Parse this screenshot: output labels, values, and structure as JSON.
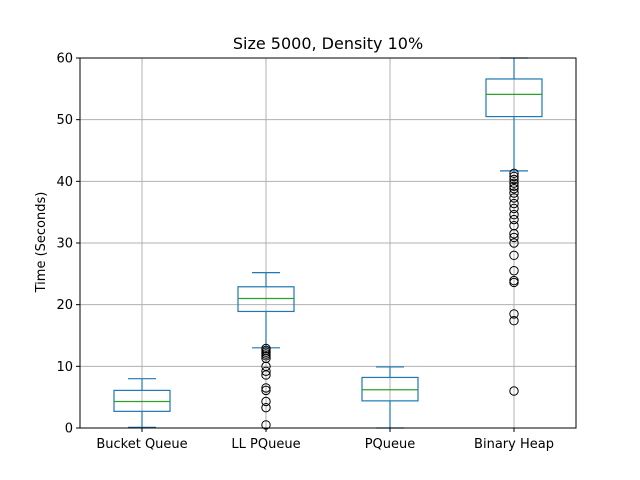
{
  "chart_data": {
    "type": "boxplot",
    "title": "Size 5000, Density 10%",
    "xlabel": "",
    "ylabel": "Time (Seconds)",
    "ylim": [
      0,
      60
    ],
    "yticks": [
      0,
      10,
      20,
      30,
      40,
      50,
      60
    ],
    "grid": true,
    "colors": {
      "box": "#1f77b4",
      "median": "#2ca02c",
      "grid": "#b0b0b0",
      "outlier": "#000000"
    },
    "categories": [
      "Bucket Queue",
      "LL PQueue",
      "PQueue",
      "Binary Heap"
    ],
    "boxes": [
      {
        "label": "Bucket Queue",
        "whisker_low": 0.1,
        "q1": 2.7,
        "median": 4.3,
        "q3": 6.1,
        "whisker_high": 8.0,
        "outliers": []
      },
      {
        "label": "LL PQueue",
        "whisker_low": 13.0,
        "q1": 18.9,
        "median": 21.0,
        "q3": 22.9,
        "whisker_high": 25.2,
        "outliers": [
          12.9,
          12.6,
          12.3,
          12.0,
          11.7,
          11.3,
          10.0,
          9.2,
          8.6,
          6.5,
          6.1,
          4.3,
          3.3,
          0.5
        ]
      },
      {
        "label": "PQueue",
        "whisker_low": 0.0,
        "q1": 4.4,
        "median": 6.2,
        "q3": 8.2,
        "whisker_high": 9.9,
        "outliers": []
      },
      {
        "label": "Binary Heap",
        "whisker_low": 41.7,
        "q1": 50.5,
        "median": 54.1,
        "q3": 56.6,
        "whisker_high": 60.0,
        "outliers": [
          41.3,
          40.8,
          40.3,
          39.7,
          39.2,
          38.8,
          38.1,
          37.3,
          36.4,
          35.6,
          34.6,
          33.8,
          32.8,
          31.5,
          30.9,
          30.0,
          28.0,
          25.5,
          23.9,
          23.6,
          18.5,
          17.4,
          6.0
        ]
      }
    ]
  }
}
